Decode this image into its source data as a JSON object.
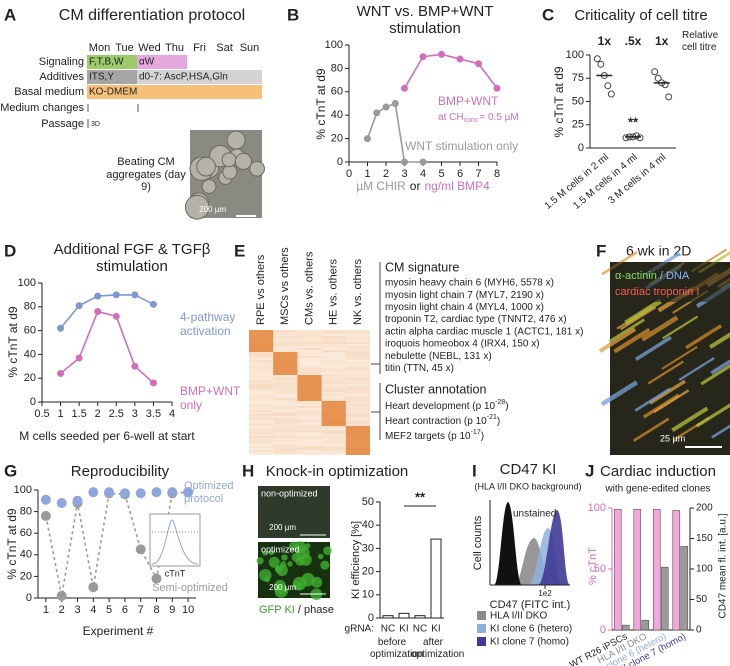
{
  "protocol": {
    "panel": "A",
    "title": "CM differentiation protocol",
    "days": [
      "Mon",
      "Tue",
      "Wed",
      "Thu",
      "Fri",
      "Sat",
      "Sun"
    ],
    "rows": [
      "Signaling",
      "Additives",
      "Basal medium",
      "Medium changes",
      "Passage"
    ],
    "signaling": [
      "F,T,B,W",
      "αW"
    ],
    "additives": [
      "ITS,Y",
      "d0-7: AscP,HSA,Gln"
    ],
    "basal": "KO-DMEM",
    "passage": "3D",
    "image_caption": "Beating CM aggregates (day 9)",
    "scale_bar": "200 µm"
  },
  "heatmap": {
    "panel": "E",
    "columns": [
      "RPE vs others",
      "MSCs vs others",
      "CMs vs. others",
      "HE vs. others",
      "NK vs. others"
    ],
    "signature_title": "CM signature",
    "signature": [
      "myosin heavy chain 6 (MYH6, 5578 x)",
      "myosin light chain 7 (MYL7, 2190 x)",
      "myosin light chain 4 (MYL4, 1000 x)",
      "troponin T2, cardiac type (TNNT2, 476 x)",
      "actin alpha cardiac muscle 1 (ACTC1, 181 x)",
      "iroquois homeobox 4 (IRX4, 150 x)",
      "nebulette (NEBL, 131 x)",
      "titin (TTN, 45 x)"
    ],
    "annotation_title": "Cluster annotation",
    "annotations": [
      {
        "text": "Heart development (p 10",
        "exp": "-28",
        "end": ")"
      },
      {
        "text": "Heart contraction (p 10",
        "exp": "-21",
        "end": ")"
      },
      {
        "text": "MEF2 targets (p 10",
        "exp": "-17",
        "end": ")"
      }
    ]
  },
  "micrograph": {
    "panel": "F",
    "title": "6 wk in 2D",
    "stain_1": "α-actinin",
    "stain_2": "/ DNA",
    "stain_3": "cardiac troponin I",
    "scale_bar": "25 µm"
  },
  "knockin_images": {
    "top": "non-optimized",
    "bottom": "optimized",
    "scale_bar_top": "200 µm",
    "scale_bar_bottom": "200 µm",
    "caption_1": "GFP KI",
    "caption_2": "/ phase"
  },
  "flow_cytometry": {
    "panel": "I",
    "title": "CD47 KI",
    "subtitle": "(HLA I/II DKO background)",
    "y_label": "Cell counts",
    "x_label": "CD47 (FITC int.)",
    "x_tick": "1e2",
    "annotation": "unstained",
    "legend": [
      {
        "name": "HLA I/II DKO",
        "color": "#8c8c8c"
      },
      {
        "name": "KI clone 6 (hetero)",
        "color": "#8fb0dd"
      },
      {
        "name": "KI clone 7 (homo)",
        "color": "#3e3a96"
      }
    ]
  },
  "chart_data": [
    {
      "panel": "B",
      "type": "line",
      "title": "WNT vs. BMP+WNT stimulation",
      "y_label": "% cTnT at d9",
      "x_label_1": "µM CHIR",
      "x_label_2": "or",
      "x_label_3": "ng/ml BMP4",
      "xlim": [
        0,
        8
      ],
      "xticks": [
        0,
        1,
        2,
        3,
        4,
        5,
        6,
        7,
        8
      ],
      "ylim": [
        0,
        100
      ],
      "yticks": [
        0,
        20,
        40,
        60,
        80,
        100
      ],
      "series": [
        {
          "name": "WNT stimulation only",
          "color": "#9a9a9a",
          "x": [
            1,
            1.5,
            2,
            2.5,
            3,
            4
          ],
          "values": [
            20,
            42,
            47,
            50,
            0,
            0
          ]
        },
        {
          "name": "BMP+WNT",
          "color": "#d16fb8",
          "x": [
            3,
            4,
            5,
            6,
            7,
            8
          ],
          "values": [
            63,
            90,
            92,
            88,
            84,
            63
          ],
          "annotation": [
            "at CH",
            "conc",
            "= 0.5 µM"
          ]
        }
      ]
    },
    {
      "panel": "C",
      "type": "dot",
      "title": "Criticality of cell titre",
      "y_label": "% cTnT at d9",
      "categories": [
        "1.5 M cells in 2 ml",
        "1.5 M cells in 4 ml",
        "3 M cells in 4 ml"
      ],
      "titre_labels": [
        "1x",
        ".5x",
        "1x"
      ],
      "titre_caption": "Relative cell titre",
      "points": [
        [
          96,
          90,
          78,
          67,
          58
        ],
        [
          11,
          12,
          12,
          13,
          11
        ],
        [
          82,
          75,
          70,
          68,
          55
        ]
      ],
      "means": [
        78,
        12,
        70
      ],
      "annotation": "**",
      "ylim": [
        0,
        100
      ],
      "yticks": [
        0,
        25,
        50,
        75,
        100
      ]
    },
    {
      "panel": "D",
      "type": "line",
      "title": "Additional FGF & TGFβ stimulation",
      "y_label": "% cTnT at d9",
      "x_label": "M cells seeded per 6-well at start",
      "xlim": [
        0.5,
        4
      ],
      "xticks": [
        0.5,
        1,
        1.5,
        2,
        2.5,
        3,
        3.5,
        4
      ],
      "ylim": [
        0,
        100
      ],
      "yticks": [
        0,
        20,
        40,
        60,
        80,
        100
      ],
      "series": [
        {
          "name": "4-pathway activation",
          "color": "#7f97d0",
          "x": [
            1,
            1.5,
            2,
            2.5,
            3,
            3.5
          ],
          "values": [
            62,
            81,
            89,
            90,
            90,
            82
          ]
        },
        {
          "name": "BMP+WNT only",
          "color": "#d16fb8",
          "x": [
            1,
            1.5,
            2,
            2.5,
            3,
            3.5
          ],
          "values": [
            24,
            37,
            76,
            72,
            30,
            16
          ]
        }
      ]
    },
    {
      "panel": "G",
      "type": "line",
      "title": "Reproducibility",
      "y_label": "% cTnT at d9",
      "x_label": "Experiment #",
      "inset_label": "cTnT",
      "x": [
        1,
        2,
        3,
        4,
        5,
        6,
        7,
        8,
        9,
        10
      ],
      "xlim": [
        0.5,
        10.5
      ],
      "xticks": [
        1,
        2,
        3,
        4,
        5,
        6,
        7,
        8,
        9,
        10
      ],
      "ylim": [
        0,
        100
      ],
      "yticks": [
        0,
        20,
        40,
        60,
        80,
        100
      ],
      "series": [
        {
          "name": "Semi-optimized",
          "color": "#9a9a9a",
          "line_style": "dashed",
          "values": [
            76,
            2,
            88,
            10,
            97,
            96,
            45,
            18,
            97,
            98
          ]
        },
        {
          "name": "Optimized protocol",
          "color": "#8fa6dc",
          "line_style": "none",
          "values": [
            91,
            88,
            90,
            98,
            98,
            97,
            97,
            98,
            98,
            98
          ]
        }
      ]
    },
    {
      "panel": "H",
      "type": "bar",
      "title": "Knock-in optimization",
      "y_label": "KI efficiency [%]",
      "category_prefix": "gRNA:",
      "categories": [
        "NC",
        "KI",
        "NC",
        "KI"
      ],
      "groups": [
        "before optimization",
        "after optimization"
      ],
      "values": [
        1,
        2,
        1,
        34
      ],
      "color": "#ffffff",
      "annotation": "**",
      "ylim": [
        0,
        50
      ],
      "yticks": [
        0,
        10,
        20,
        30,
        40,
        50
      ]
    },
    {
      "panel": "J",
      "type": "bar_dual",
      "title": "Cardiac induction",
      "subtitle": "with gene-edited clones",
      "y_label": "% cTnT",
      "y2_label": "CD47 mean fl. int. [a.u.]",
      "categories": [
        "WT R26 iPSCs",
        "HLA I/II DKO",
        "KI clone 6 (hetero)",
        "KI clone 7 (homo)"
      ],
      "category_colors": [
        "#222222",
        "#8c8c8c",
        "#8fb0dd",
        "#3e3a96"
      ],
      "ylim": [
        0,
        100
      ],
      "yticks": [
        0,
        50,
        100
      ],
      "y2lim": [
        0,
        200
      ],
      "y2ticks": [
        0,
        50,
        100,
        150,
        200
      ],
      "series": [
        {
          "color": "#f1a7d9",
          "values": [
            99,
            99,
            99,
            98
          ]
        },
        {
          "color": "#9a9a9a",
          "axis": "y2",
          "values": [
            8,
            16,
            103,
            137
          ]
        }
      ]
    }
  ]
}
